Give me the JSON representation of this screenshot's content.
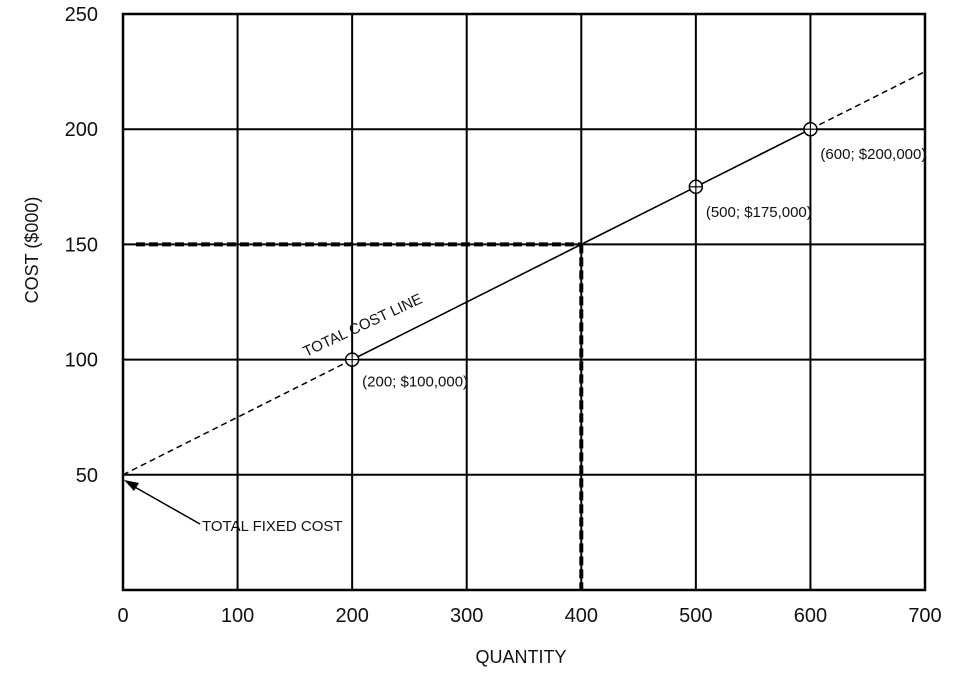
{
  "chart_data": {
    "type": "line",
    "title": "",
    "xlabel": "QUANTITY",
    "ylabel": "COST ($000)",
    "xlim": [
      0,
      700
    ],
    "ylim": [
      0,
      250
    ],
    "x_ticks": [
      "0",
      "100",
      "200",
      "300",
      "400",
      "500",
      "600",
      "700"
    ],
    "y_ticks": [
      "50",
      "100",
      "150",
      "200",
      "250"
    ],
    "grid": true,
    "series": [
      {
        "name": "TOTAL COST LINE",
        "x": [
          0,
          200,
          400,
          500,
          600,
          700
        ],
        "y": [
          50,
          100,
          150,
          175,
          200,
          225
        ]
      }
    ],
    "solid_segment": {
      "x": [
        200,
        600
      ]
    },
    "marked_points": [
      {
        "x": 200,
        "y": 100,
        "label": "(200; $100,000)"
      },
      {
        "x": 500,
        "y": 175,
        "label": "(500; $175,000)"
      },
      {
        "x": 600,
        "y": 200,
        "label": "(600; $200,000)"
      }
    ],
    "reference_lines": {
      "x": 400,
      "y": 150
    },
    "annotations": {
      "line_label": "TOTAL COST LINE",
      "fixed_cost_label": "TOTAL FIXED COST",
      "fixed_cost_point": {
        "x": 0,
        "y": 50
      }
    },
    "colors": {
      "line": "#000000",
      "background": "#ffffff"
    }
  }
}
